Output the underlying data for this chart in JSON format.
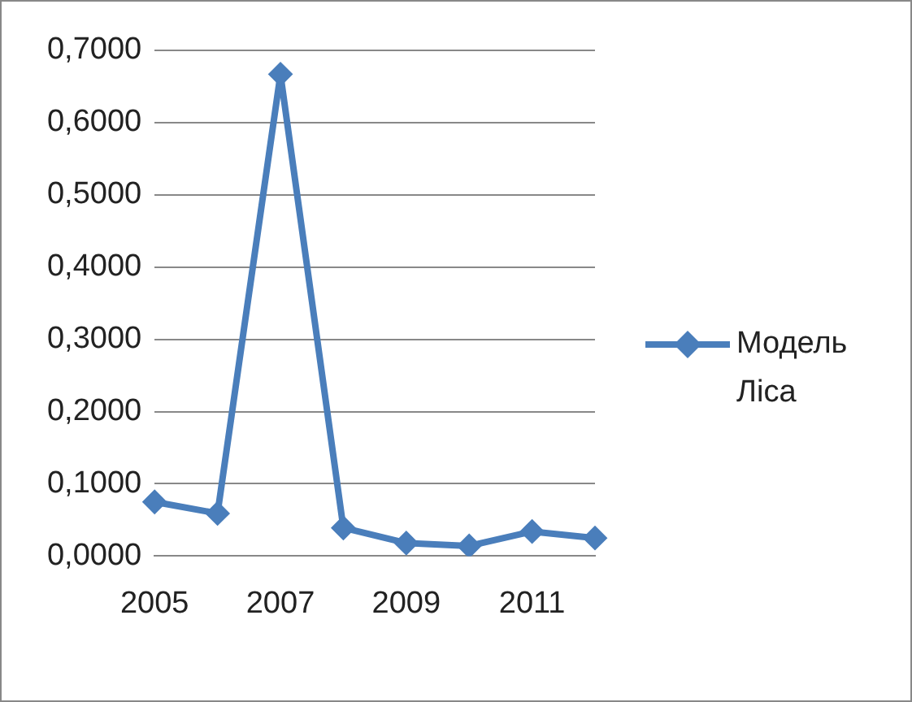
{
  "chart_data": {
    "type": "line",
    "categories": [
      "2005",
      null,
      "2007",
      null,
      "2009",
      null,
      "2011",
      null
    ],
    "series": [
      {
        "name": "Модель Ліса",
        "color": "#4a7ebb",
        "values": [
          0.075,
          0.059,
          0.667,
          0.039,
          0.018,
          0.014,
          0.034,
          0.025
        ]
      }
    ],
    "ylim": [
      0,
      0.7
    ],
    "yticks": [
      {
        "value": 0,
        "label": "0,0000"
      },
      {
        "value": 0.1,
        "label": "0,1000"
      },
      {
        "value": 0.2,
        "label": "0,2000"
      },
      {
        "value": 0.3,
        "label": "0,3000"
      },
      {
        "value": 0.4,
        "label": "0,4000"
      },
      {
        "value": 0.5,
        "label": "0,5000"
      },
      {
        "value": 0.6,
        "label": "0,6000"
      },
      {
        "value": 0.7,
        "label": "0,7000"
      }
    ],
    "grid": "y",
    "legend": "right",
    "marker": "diamond",
    "line_style": "solid"
  }
}
